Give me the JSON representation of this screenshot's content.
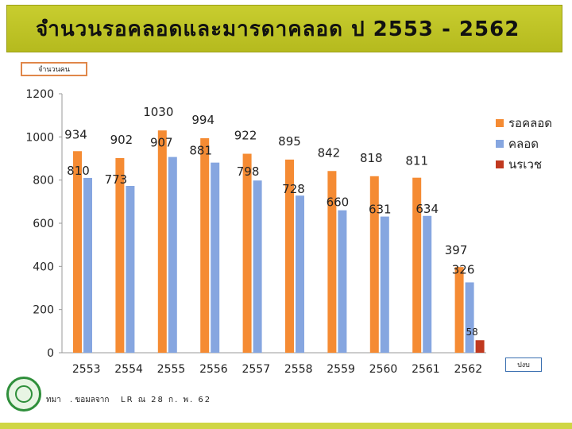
{
  "title": "จำนวนรอคลอดและมารดาคลอด  ป  2553 - 2562",
  "unit_label": "จำนวนคน",
  "year_box_label": "ปงบ",
  "footer": {
    "source_prefix": "ทมา",
    "source": ". ขอมลจาก",
    "date": "LR ณ 28 ก. พ. 62"
  },
  "colors": {
    "waiting": "#f58b33",
    "delivered": "#86a6e0",
    "referred": "#c0391f"
  },
  "chart_data": {
    "type": "bar",
    "categories": [
      "2553",
      "2554",
      "2555",
      "2556",
      "2557",
      "2558",
      "2559",
      "2560",
      "2561",
      "2562"
    ],
    "series": [
      {
        "name": "รอคลอด",
        "values": [
          934,
          902,
          1030,
          994,
          922,
          895,
          842,
          818,
          811,
          397
        ]
      },
      {
        "name": "คลอด",
        "values": [
          810,
          773,
          907,
          881,
          798,
          728,
          660,
          631,
          634,
          326
        ]
      },
      {
        "name": "นรเวช",
        "values": [
          null,
          null,
          null,
          null,
          null,
          null,
          null,
          null,
          null,
          58
        ]
      }
    ],
    "y_ticks": [
      "0",
      "200",
      "400",
      "600",
      "800",
      "1000",
      "1200"
    ],
    "ylim": [
      0,
      1200
    ],
    "grid": false,
    "legend_position": "right",
    "xlabel": "",
    "ylabel": ""
  }
}
